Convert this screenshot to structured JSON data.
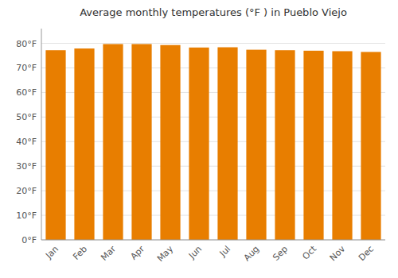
{
  "chart_data": {
    "type": "bar",
    "title": "Average monthly temperatures (°F ) in Pueblo Viejo",
    "categories": [
      "Jan",
      "Feb",
      "Mar",
      "Apr",
      "May",
      "Jun",
      "Jul",
      "Aug",
      "Sep",
      "Oct",
      "Nov",
      "Dec"
    ],
    "values": [
      77.2,
      77.9,
      79.7,
      79.7,
      79.3,
      78.3,
      78.4,
      77.4,
      77.2,
      77.0,
      76.8,
      76.5
    ],
    "color": "#E87E00",
    "ylim": [
      0,
      86
    ],
    "yticks": [
      {
        "value": 0,
        "label": "0°F"
      },
      {
        "value": 10,
        "label": "10°F"
      },
      {
        "value": 20,
        "label": "20°F"
      },
      {
        "value": 30,
        "label": "30°F"
      },
      {
        "value": 40,
        "label": "40°F"
      },
      {
        "value": 50,
        "label": "50°F"
      },
      {
        "value": 60,
        "label": "60°F"
      },
      {
        "value": 70,
        "label": "70°F"
      },
      {
        "value": 80,
        "label": "80°F"
      }
    ],
    "grid": true
  }
}
